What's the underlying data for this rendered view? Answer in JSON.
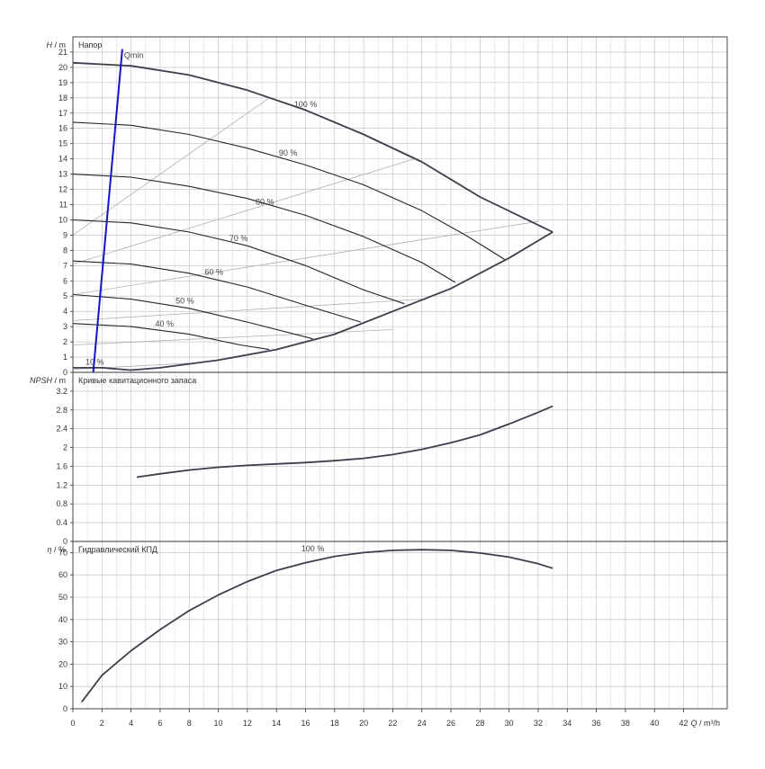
{
  "chart_data": [
    {
      "type": "line",
      "title": "Напор",
      "ylabel_var": "H",
      "ylabel_unit": "m",
      "xlim": [
        0,
        45
      ],
      "ylim": [
        0,
        22
      ],
      "x_ticks": [
        0,
        2,
        4,
        6,
        8,
        10,
        12,
        14,
        16,
        18,
        20,
        22,
        24,
        26,
        28,
        30,
        32,
        34,
        36,
        38,
        40,
        42
      ],
      "y_ticks": [
        0,
        1,
        2,
        3,
        4,
        5,
        6,
        7,
        8,
        9,
        10,
        11,
        12,
        13,
        14,
        15,
        16,
        17,
        18,
        19,
        20,
        21
      ],
      "x_axis_var": "Q",
      "x_axis_unit": "m³/h",
      "qmin_label": "Qmin",
      "qmin_line": [
        {
          "x": 1.4,
          "y": 0
        },
        {
          "x": 3.4,
          "y": 21.2
        }
      ],
      "envelope": [
        {
          "x": 0,
          "y": 20.3
        },
        {
          "x": 4,
          "y": 20.1
        },
        {
          "x": 8,
          "y": 19.5
        },
        {
          "x": 12,
          "y": 18.5
        },
        {
          "x": 16,
          "y": 17.2
        },
        {
          "x": 20,
          "y": 15.6
        },
        {
          "x": 24,
          "y": 13.8
        },
        {
          "x": 28,
          "y": 11.5
        },
        {
          "x": 31,
          "y": 10.2
        },
        {
          "x": 33,
          "y": 9.2
        },
        {
          "x": 30,
          "y": 7.5
        },
        {
          "x": 26,
          "y": 5.5
        },
        {
          "x": 22,
          "y": 4.0
        },
        {
          "x": 18,
          "y": 2.5
        },
        {
          "x": 14,
          "y": 1.5
        },
        {
          "x": 10,
          "y": 0.8
        },
        {
          "x": 6,
          "y": 0.3
        },
        {
          "x": 4,
          "y": 0.15
        },
        {
          "x": 2,
          "y": 0.3
        },
        {
          "x": 0,
          "y": 0.3
        }
      ],
      "series": [
        {
          "name": "100 %",
          "label_at": {
            "x": 16,
            "y": 17.4
          },
          "values": [
            {
              "x": 0,
              "y": 20.3
            },
            {
              "x": 4,
              "y": 20.1
            },
            {
              "x": 8,
              "y": 19.5
            },
            {
              "x": 12,
              "y": 18.5
            },
            {
              "x": 16,
              "y": 17.2
            },
            {
              "x": 20,
              "y": 15.6
            },
            {
              "x": 24,
              "y": 13.8
            },
            {
              "x": 28,
              "y": 11.5
            },
            {
              "x": 33,
              "y": 9.2
            }
          ]
        },
        {
          "name": "90 %",
          "label_at": {
            "x": 14.8,
            "y": 14.2
          },
          "values": [
            {
              "x": 0,
              "y": 16.4
            },
            {
              "x": 4,
              "y": 16.2
            },
            {
              "x": 8,
              "y": 15.6
            },
            {
              "x": 12,
              "y": 14.7
            },
            {
              "x": 16,
              "y": 13.6
            },
            {
              "x": 20,
              "y": 12.3
            },
            {
              "x": 24,
              "y": 10.6
            },
            {
              "x": 27,
              "y": 9.0
            },
            {
              "x": 29.7,
              "y": 7.4
            }
          ]
        },
        {
          "name": "80 %",
          "label_at": {
            "x": 13.2,
            "y": 11.0
          },
          "values": [
            {
              "x": 0,
              "y": 13.0
            },
            {
              "x": 4,
              "y": 12.8
            },
            {
              "x": 8,
              "y": 12.2
            },
            {
              "x": 12,
              "y": 11.4
            },
            {
              "x": 16,
              "y": 10.3
            },
            {
              "x": 20,
              "y": 8.9
            },
            {
              "x": 24,
              "y": 7.2
            },
            {
              "x": 26.3,
              "y": 5.9
            }
          ]
        },
        {
          "name": "70 %",
          "label_at": {
            "x": 11.4,
            "y": 8.6
          },
          "values": [
            {
              "x": 0,
              "y": 10.0
            },
            {
              "x": 4,
              "y": 9.8
            },
            {
              "x": 8,
              "y": 9.2
            },
            {
              "x": 12,
              "y": 8.3
            },
            {
              "x": 16,
              "y": 7.0
            },
            {
              "x": 20,
              "y": 5.4
            },
            {
              "x": 22.8,
              "y": 4.5
            }
          ]
        },
        {
          "name": "60 %",
          "label_at": {
            "x": 9.7,
            "y": 6.4
          },
          "values": [
            {
              "x": 0,
              "y": 7.3
            },
            {
              "x": 4,
              "y": 7.1
            },
            {
              "x": 8,
              "y": 6.5
            },
            {
              "x": 12,
              "y": 5.6
            },
            {
              "x": 16,
              "y": 4.4
            },
            {
              "x": 19.8,
              "y": 3.3
            }
          ]
        },
        {
          "name": "50 %",
          "label_at": {
            "x": 7.7,
            "y": 4.5
          },
          "values": [
            {
              "x": 0,
              "y": 5.1
            },
            {
              "x": 4,
              "y": 4.8
            },
            {
              "x": 8,
              "y": 4.2
            },
            {
              "x": 12,
              "y": 3.3
            },
            {
              "x": 16.5,
              "y": 2.2
            }
          ]
        },
        {
          "name": "40 %",
          "label_at": {
            "x": 6.3,
            "y": 3.0
          },
          "values": [
            {
              "x": 0,
              "y": 3.2
            },
            {
              "x": 4,
              "y": 3.0
            },
            {
              "x": 8,
              "y": 2.5
            },
            {
              "x": 11.5,
              "y": 1.8
            },
            {
              "x": 13.5,
              "y": 1.5
            }
          ]
        },
        {
          "name": "10 %",
          "label_at": {
            "x": 1.5,
            "y": 0.5
          },
          "values": [
            {
              "x": 0,
              "y": 0.3
            },
            {
              "x": 2,
              "y": 0.3
            },
            {
              "x": 4,
              "y": 0.15
            }
          ]
        }
      ],
      "guide_lines": [
        [
          {
            "x": 0,
            "y": 9.0
          },
          {
            "x": 13.5,
            "y": 18.0
          }
        ],
        [
          {
            "x": 0,
            "y": 7.1
          },
          {
            "x": 23.5,
            "y": 14.0
          }
        ],
        [
          {
            "x": 0,
            "y": 5.1
          },
          {
            "x": 32,
            "y": 9.9
          }
        ],
        [
          {
            "x": 0,
            "y": 3.4
          },
          {
            "x": 24,
            "y": 4.8
          }
        ],
        [
          {
            "x": 0,
            "y": 1.8
          },
          {
            "x": 22,
            "y": 2.8
          }
        ],
        [
          {
            "x": 0,
            "y": 0.2
          },
          {
            "x": 8,
            "y": 0.6
          }
        ]
      ]
    },
    {
      "type": "line",
      "title": "Кривые кавитационного запаса",
      "ylabel_var": "NPSH",
      "ylabel_unit": "m",
      "ylim": [
        0,
        3.6
      ],
      "y_ticks": [
        0,
        0.4,
        0.8,
        1.2,
        1.6,
        2,
        2.4,
        2.8,
        3.2
      ],
      "series": [
        {
          "name": "",
          "values": [
            {
              "x": 4.4,
              "y": 1.37
            },
            {
              "x": 6,
              "y": 1.44
            },
            {
              "x": 8,
              "y": 1.52
            },
            {
              "x": 10,
              "y": 1.58
            },
            {
              "x": 12,
              "y": 1.62
            },
            {
              "x": 14,
              "y": 1.65
            },
            {
              "x": 16,
              "y": 1.68
            },
            {
              "x": 18,
              "y": 1.72
            },
            {
              "x": 20,
              "y": 1.77
            },
            {
              "x": 22,
              "y": 1.85
            },
            {
              "x": 24,
              "y": 1.96
            },
            {
              "x": 26,
              "y": 2.1
            },
            {
              "x": 28,
              "y": 2.27
            },
            {
              "x": 30,
              "y": 2.5
            },
            {
              "x": 32,
              "y": 2.75
            },
            {
              "x": 33,
              "y": 2.88
            }
          ]
        }
      ]
    },
    {
      "type": "line",
      "title": "Гидравлический КПД",
      "ylabel_var": "η",
      "ylabel_unit": "%",
      "ylim": [
        0,
        75
      ],
      "y_ticks": [
        0,
        10,
        20,
        30,
        40,
        50,
        60,
        70
      ],
      "series": [
        {
          "name": "100 %",
          "label_at": {
            "x": 16.5,
            "y": 70.5
          },
          "values": [
            {
              "x": 0.6,
              "y": 3
            },
            {
              "x": 2,
              "y": 15
            },
            {
              "x": 4,
              "y": 26
            },
            {
              "x": 6,
              "y": 35.5
            },
            {
              "x": 8,
              "y": 44
            },
            {
              "x": 10,
              "y": 51
            },
            {
              "x": 12,
              "y": 57
            },
            {
              "x": 14,
              "y": 62
            },
            {
              "x": 16,
              "y": 65.5
            },
            {
              "x": 18,
              "y": 68.3
            },
            {
              "x": 20,
              "y": 70
            },
            {
              "x": 22,
              "y": 71
            },
            {
              "x": 24,
              "y": 71.3
            },
            {
              "x": 26,
              "y": 71
            },
            {
              "x": 28,
              "y": 69.8
            },
            {
              "x": 30,
              "y": 68
            },
            {
              "x": 32,
              "y": 65
            },
            {
              "x": 33,
              "y": 63
            }
          ]
        }
      ]
    }
  ]
}
